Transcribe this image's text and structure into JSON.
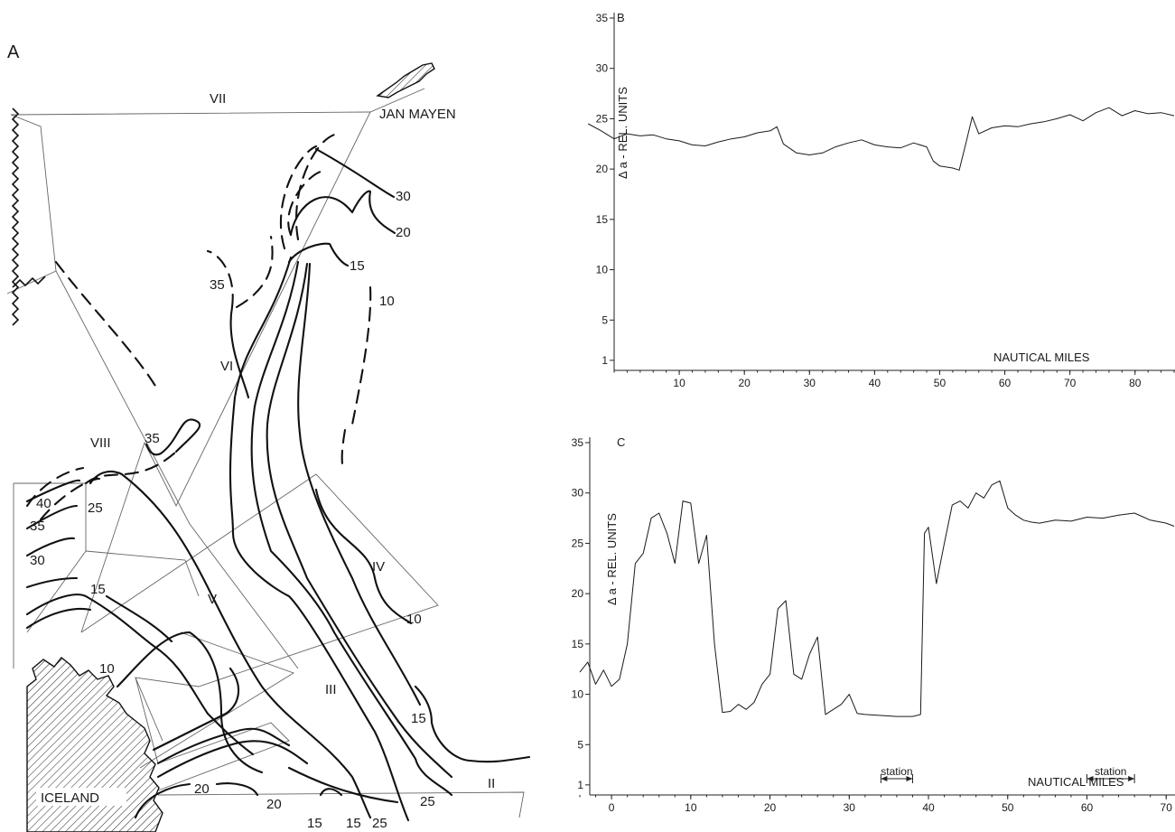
{
  "map": {
    "panel_letter": "A",
    "place_labels": {
      "jan_mayen": "JAN MAYEN",
      "iceland": "ICELAND"
    },
    "section_labels": [
      "VII",
      "VI",
      "VIII",
      "V",
      "IV",
      "III",
      "II"
    ],
    "isoline_labels": [
      "30",
      "20",
      "15",
      "35",
      "10",
      "35",
      "40",
      "35",
      "25",
      "30",
      "15",
      "10",
      "10",
      "15",
      "20",
      "20",
      "15",
      "15",
      "25",
      "25"
    ]
  },
  "chart_data": [
    {
      "type": "line",
      "panel_letter": "B",
      "ylabel": "Δ a - REL. UNITS",
      "xlabel": "NAUTICAL MILES",
      "xlim": [
        0,
        86
      ],
      "ylim": [
        0,
        35
      ],
      "y_ticks": [
        "35",
        "30",
        "25",
        "20",
        "15",
        "10",
        "5",
        "1"
      ],
      "x_ticks": [
        "10",
        "20",
        "30",
        "40",
        "50",
        "60",
        "70",
        "80"
      ],
      "series": [
        {
          "x": [
            -4,
            -2,
            0,
            2,
            4,
            6,
            8,
            10,
            12,
            14,
            16,
            18,
            20,
            22,
            24,
            25,
            26,
            28,
            30,
            32,
            34,
            36,
            38,
            40,
            42,
            44,
            46,
            48,
            49,
            50,
            52,
            53,
            54,
            55,
            56,
            58,
            60,
            62,
            64,
            66,
            68,
            70,
            72,
            74,
            76,
            78,
            80,
            82,
            84,
            86
          ],
          "y": [
            24.5,
            23.8,
            23,
            23.5,
            23.3,
            23.4,
            23,
            22.8,
            22.4,
            22.3,
            22.7,
            23,
            23.2,
            23.6,
            23.8,
            24.2,
            22.5,
            21.6,
            21.4,
            21.6,
            22.2,
            22.6,
            22.9,
            22.4,
            22.2,
            22.1,
            22.6,
            22.2,
            20.8,
            20.3,
            20.1,
            19.9,
            22.5,
            25.2,
            23.5,
            24.1,
            24.3,
            24.2,
            24.5,
            24.7,
            25,
            25.4,
            24.8,
            25.6,
            26.1,
            25.3,
            25.8,
            25.5,
            25.6,
            25.3
          ]
        }
      ]
    },
    {
      "type": "line",
      "panel_letter": "C",
      "ylabel": "Δ a - REL. UNITS",
      "xlabel": "NAUTICAL MILES",
      "xlim": [
        -4,
        71
      ],
      "ylim": [
        0,
        35
      ],
      "y_ticks": [
        "35",
        "30",
        "25",
        "20",
        "15",
        "10",
        "5",
        "1"
      ],
      "x_ticks": [
        "0",
        "10",
        "20",
        "30",
        "40",
        "50",
        "60",
        "70"
      ],
      "station_label": "station",
      "stations": [
        [
          34,
          38
        ],
        [
          60,
          66
        ]
      ],
      "series": [
        {
          "x": [
            -4,
            -3,
            -2,
            -1,
            0,
            1,
            2,
            3,
            4,
            5,
            6,
            7,
            8,
            9,
            10,
            11,
            12,
            13,
            14,
            15,
            16,
            17,
            18,
            19,
            20,
            21,
            22,
            23,
            24,
            25,
            26,
            27,
            28,
            29,
            30,
            31,
            32,
            34,
            36,
            38,
            39,
            39.5,
            40,
            41,
            42,
            43,
            44,
            45,
            46,
            47,
            48,
            49,
            50,
            51,
            52,
            53,
            54,
            56,
            58,
            60,
            62,
            64,
            66,
            68,
            70,
            71
          ],
          "y": [
            12.2,
            13.2,
            11,
            12.4,
            10.8,
            11.5,
            15,
            23,
            24,
            27.5,
            28,
            26,
            23,
            29.2,
            29,
            23,
            25.8,
            15,
            8.2,
            8.3,
            9,
            8.5,
            9.2,
            11,
            12,
            18.5,
            19.3,
            12,
            11.5,
            14,
            15.7,
            8,
            8.5,
            9,
            10,
            8.1,
            8,
            7.9,
            7.8,
            7.8,
            8,
            26,
            26.6,
            21,
            25,
            28.8,
            29.2,
            28.5,
            30,
            29.5,
            30.8,
            31.2,
            28.5,
            27.8,
            27.3,
            27.1,
            27,
            27.3,
            27.2,
            27.6,
            27.5,
            27.8,
            28,
            27.3,
            27,
            26.7
          ]
        }
      ]
    }
  ]
}
